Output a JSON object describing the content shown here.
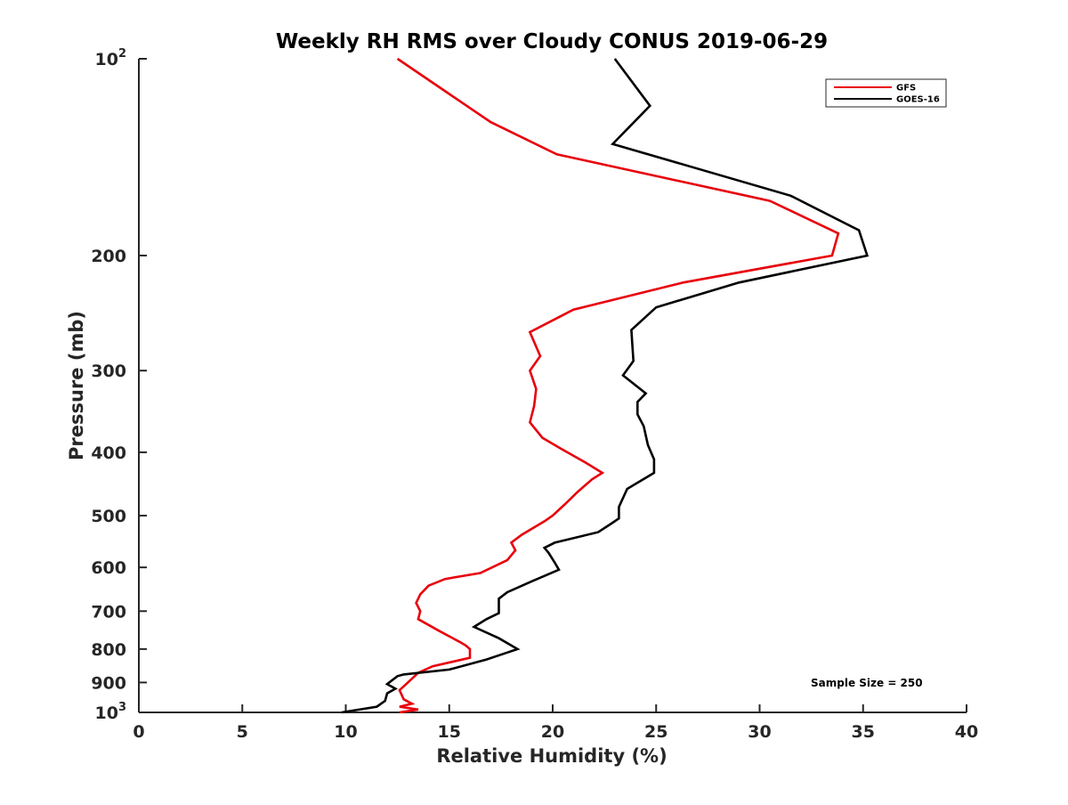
{
  "chart_data": {
    "type": "line",
    "title": "Weekly RH RMS over Cloudy CONUS 2019-06-29",
    "xlabel": "Relative Humidity (%)",
    "ylabel": "Pressure (mb)",
    "xlim": [
      0,
      40
    ],
    "ylim": [
      100,
      1000
    ],
    "y_scale": "log",
    "y_reversed": true,
    "grid": false,
    "legend_position": "top-right",
    "x_ticks": [
      0,
      5,
      10,
      15,
      20,
      25,
      30,
      35,
      40
    ],
    "x_tick_labels": [
      "0",
      "5",
      "10",
      "15",
      "20",
      "25",
      "30",
      "35",
      "40"
    ],
    "y_ticks": [
      {
        "value": 100,
        "base": "10",
        "exp": "2"
      },
      {
        "value": 200,
        "label": "200"
      },
      {
        "value": 300,
        "label": "300"
      },
      {
        "value": 400,
        "label": "400"
      },
      {
        "value": 500,
        "label": "500"
      },
      {
        "value": 600,
        "label": "600"
      },
      {
        "value": 700,
        "label": "700"
      },
      {
        "value": 800,
        "label": "800"
      },
      {
        "value": 900,
        "label": "900"
      },
      {
        "value": 1000,
        "base": "10",
        "exp": "3"
      }
    ],
    "series": [
      {
        "name": "GFS",
        "color": "#e8000b",
        "points": [
          [
            12.6,
            1000
          ],
          [
            13.5,
            990
          ],
          [
            12.6,
            980
          ],
          [
            13.2,
            970
          ],
          [
            12.8,
            955
          ],
          [
            12.6,
            925
          ],
          [
            13.0,
            900
          ],
          [
            13.5,
            870
          ],
          [
            14.2,
            850
          ],
          [
            16.0,
            825
          ],
          [
            16.0,
            800
          ],
          [
            15.8,
            790
          ],
          [
            15.5,
            780
          ],
          [
            14.5,
            750
          ],
          [
            13.5,
            720
          ],
          [
            13.6,
            700
          ],
          [
            13.4,
            680
          ],
          [
            13.6,
            660
          ],
          [
            14.0,
            640
          ],
          [
            14.8,
            625
          ],
          [
            16.5,
            612
          ],
          [
            17.8,
            585
          ],
          [
            18.2,
            565
          ],
          [
            18.0,
            550
          ],
          [
            18.5,
            535
          ],
          [
            19.6,
            510
          ],
          [
            20.0,
            500
          ],
          [
            20.6,
            480
          ],
          [
            21.2,
            460
          ],
          [
            21.9,
            440
          ],
          [
            22.4,
            430
          ],
          [
            21.6,
            415
          ],
          [
            20.4,
            395
          ],
          [
            19.5,
            380
          ],
          [
            18.9,
            360
          ],
          [
            19.1,
            340
          ],
          [
            19.2,
            320
          ],
          [
            18.9,
            300
          ],
          [
            19.4,
            285
          ],
          [
            18.9,
            262
          ],
          [
            21.0,
            242
          ],
          [
            26.3,
            220
          ],
          [
            33.5,
            200
          ],
          [
            33.8,
            185
          ],
          [
            30.5,
            165
          ],
          [
            20.2,
            140
          ],
          [
            17.0,
            125
          ],
          [
            12.5,
            100
          ]
        ]
      },
      {
        "name": "GOES-16",
        "color": "#000000",
        "points": [
          [
            9.8,
            1000
          ],
          [
            11.5,
            980
          ],
          [
            11.9,
            960
          ],
          [
            12.0,
            935
          ],
          [
            12.4,
            920
          ],
          [
            12.0,
            905
          ],
          [
            12.5,
            880
          ],
          [
            12.8,
            875
          ],
          [
            15.0,
            860
          ],
          [
            16.8,
            830
          ],
          [
            17.8,
            810
          ],
          [
            18.3,
            800
          ],
          [
            17.4,
            770
          ],
          [
            16.2,
            740
          ],
          [
            16.8,
            720
          ],
          [
            17.4,
            705
          ],
          [
            17.4,
            670
          ],
          [
            17.8,
            655
          ],
          [
            19.0,
            630
          ],
          [
            20.3,
            605
          ],
          [
            20.1,
            590
          ],
          [
            19.8,
            570
          ],
          [
            19.6,
            560
          ],
          [
            20.1,
            550
          ],
          [
            22.2,
            530
          ],
          [
            22.8,
            515
          ],
          [
            23.2,
            505
          ],
          [
            23.2,
            485
          ],
          [
            23.6,
            455
          ],
          [
            24.9,
            430
          ],
          [
            24.9,
            410
          ],
          [
            24.6,
            390
          ],
          [
            24.4,
            365
          ],
          [
            24.1,
            350
          ],
          [
            24.1,
            335
          ],
          [
            24.5,
            325
          ],
          [
            23.4,
            305
          ],
          [
            23.9,
            290
          ],
          [
            23.8,
            260
          ],
          [
            25.0,
            240
          ],
          [
            29.0,
            220
          ],
          [
            35.2,
            200
          ],
          [
            34.8,
            183
          ],
          [
            31.5,
            162
          ],
          [
            22.9,
            135
          ],
          [
            24.7,
            118
          ],
          [
            23.0,
            100
          ]
        ]
      }
    ],
    "annotations": [
      "Sample Size = 250"
    ]
  }
}
